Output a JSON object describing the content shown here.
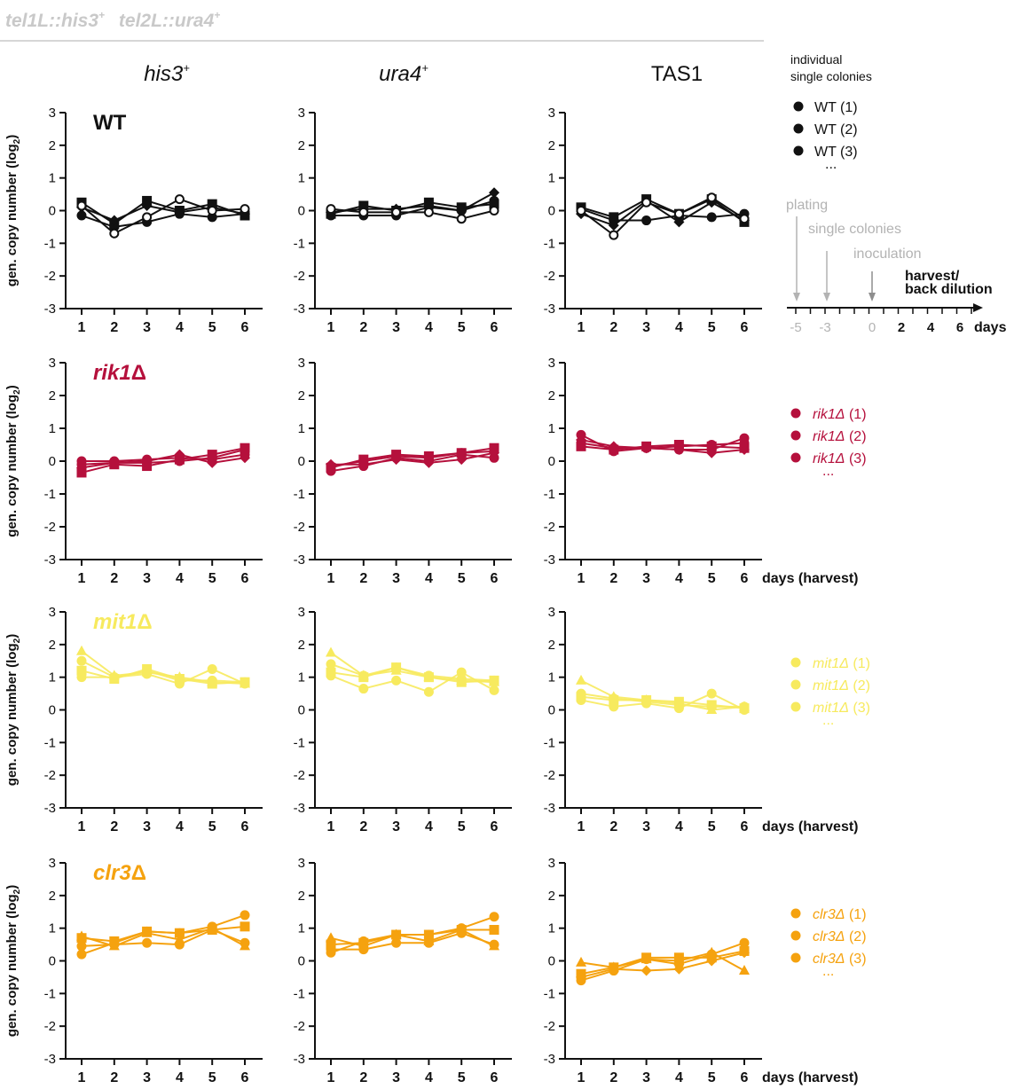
{
  "header": {
    "construct_a": "tel1L::his3",
    "construct_a_sup": "+",
    "construct_b": "tel2L::ura4",
    "construct_b_sup": "+"
  },
  "columns": [
    {
      "base": "his3",
      "sup": "+",
      "italic": true
    },
    {
      "base": "ura4",
      "sup": "+",
      "italic": true
    },
    {
      "base": "TAS1",
      "sup": "",
      "italic": false
    }
  ],
  "ylabel_main": "gen. copy number (log",
  "ylabel_sub": "2",
  "ylabel_close": ")",
  "xlabel": "days (harvest)",
  "legend": {
    "title_line1": "individual",
    "title_line2": "single colonies",
    "ellipsis": "..."
  },
  "timeline": {
    "labels": [
      "plating",
      "single colonies",
      "inoculation"
    ],
    "harvest_line1": "harvest/",
    "harvest_line2": "back dilution",
    "ticks": [
      "-5",
      "-3",
      "0",
      "2",
      "4",
      "6"
    ],
    "unit": "days"
  },
  "colors": {
    "WT": "#111111",
    "rik1": "#b5103c",
    "mit1": "#f7ea5e",
    "clr3": "#f5a20f",
    "grey": "#b3b3b3"
  },
  "chart_data": {
    "type": "line",
    "x": [
      1,
      2,
      3,
      4,
      5,
      6
    ],
    "ylim": [
      -3,
      3
    ],
    "yticks": [
      -3,
      -2,
      -1,
      0,
      1,
      2,
      3
    ],
    "grid": false,
    "rows": [
      {
        "strain": "WT",
        "mutant": false,
        "color": "#111111",
        "xlabel_shown": false,
        "legend": [
          "WT (1)",
          "WT (2)",
          "WT (3)"
        ],
        "panels": [
          {
            "column": "his3+",
            "series": [
              {
                "marker": "circle",
                "values": [
                  -0.15,
                  -0.5,
                  -0.35,
                  -0.1,
                  -0.2,
                  -0.1
                ]
              },
              {
                "marker": "square",
                "values": [
                  0.25,
                  -0.4,
                  0.3,
                  0.0,
                  0.2,
                  -0.15
                ]
              },
              {
                "marker": "diamond",
                "values": [
                  0.1,
                  -0.3,
                  0.15,
                  -0.05,
                  0.1,
                  -0.1
                ]
              },
              {
                "marker": "open",
                "values": [
                  0.15,
                  -0.7,
                  -0.2,
                  0.35,
                  0.0,
                  0.05
                ]
              }
            ]
          },
          {
            "column": "ura4+",
            "series": [
              {
                "marker": "circle",
                "values": [
                  -0.15,
                  -0.15,
                  -0.15,
                  0.1,
                  0.0,
                  0.3
                ]
              },
              {
                "marker": "square",
                "values": [
                  -0.1,
                  0.15,
                  0.0,
                  0.25,
                  0.1,
                  0.2
                ]
              },
              {
                "marker": "diamond",
                "values": [
                  -0.05,
                  0.05,
                  0.05,
                  0.15,
                  0.0,
                  0.55
                ]
              },
              {
                "marker": "open",
                "values": [
                  0.05,
                  -0.05,
                  -0.05,
                  -0.05,
                  -0.25,
                  0.0
                ]
              }
            ]
          },
          {
            "column": "TAS1",
            "series": [
              {
                "marker": "circle",
                "values": [
                  0.05,
                  -0.3,
                  -0.3,
                  -0.15,
                  -0.2,
                  -0.1
                ]
              },
              {
                "marker": "square",
                "values": [
                  0.1,
                  -0.2,
                  0.35,
                  -0.1,
                  0.35,
                  -0.35
                ]
              },
              {
                "marker": "diamond",
                "values": [
                  -0.1,
                  -0.45,
                  0.3,
                  -0.35,
                  0.25,
                  -0.3
                ]
              },
              {
                "marker": "open",
                "values": [
                  0.0,
                  -0.75,
                  0.25,
                  -0.1,
                  0.4,
                  -0.25
                ]
              }
            ]
          }
        ]
      },
      {
        "strain": "rik1",
        "mutant": true,
        "color": "#b5103c",
        "xlabel_shown": true,
        "legend": [
          "rik1Δ (1)",
          "rik1Δ (2)",
          "rik1Δ (3)"
        ],
        "panels": [
          {
            "column": "his3+",
            "series": [
              {
                "marker": "circle",
                "values": [
                  0.0,
                  0.0,
                  0.05,
                  0.1,
                  0.05,
                  0.2
                ]
              },
              {
                "marker": "square",
                "values": [
                  -0.35,
                  -0.1,
                  -0.15,
                  0.05,
                  0.2,
                  0.4
                ]
              },
              {
                "marker": "diamond",
                "values": [
                  -0.2,
                  -0.05,
                  0.0,
                  0.2,
                  -0.05,
                  0.1
                ]
              },
              {
                "marker": "circle",
                "values": [
                  -0.1,
                  -0.05,
                  -0.05,
                  0.0,
                  0.1,
                  0.35
                ]
              }
            ]
          },
          {
            "column": "ura4+",
            "series": [
              {
                "marker": "circle",
                "values": [
                  -0.3,
                  -0.15,
                  0.1,
                  0.0,
                  0.2,
                  0.1
                ]
              },
              {
                "marker": "square",
                "values": [
                  -0.2,
                  0.05,
                  0.2,
                  0.15,
                  0.25,
                  0.4
                ]
              },
              {
                "marker": "diamond",
                "values": [
                  -0.1,
                  -0.1,
                  0.05,
                  -0.05,
                  0.05,
                  0.25
                ]
              },
              {
                "marker": "circle",
                "values": [
                  -0.15,
                  0.0,
                  0.15,
                  0.1,
                  0.25,
                  0.3
                ]
              }
            ]
          },
          {
            "column": "TAS1",
            "series": [
              {
                "marker": "circle",
                "values": [
                  0.8,
                  0.3,
                  0.4,
                  0.35,
                  0.35,
                  0.7
                ]
              },
              {
                "marker": "square",
                "values": [
                  0.45,
                  0.35,
                  0.45,
                  0.5,
                  0.45,
                  0.4
                ]
              },
              {
                "marker": "diamond",
                "values": [
                  0.65,
                  0.45,
                  0.4,
                  0.35,
                  0.25,
                  0.35
                ]
              },
              {
                "marker": "circle",
                "values": [
                  0.55,
                  0.4,
                  0.4,
                  0.45,
                  0.5,
                  0.55
                ]
              }
            ]
          }
        ]
      },
      {
        "strain": "mit1",
        "mutant": true,
        "color": "#f7ea5e",
        "xlabel_shown": true,
        "legend": [
          "mit1Δ (1)",
          "mit1Δ (2)",
          "mit1Δ (3)"
        ],
        "panels": [
          {
            "column": "his3+",
            "series": [
              {
                "marker": "circle",
                "values": [
                  1.0,
                  1.0,
                  1.1,
                  0.8,
                  1.25,
                  0.8
                ]
              },
              {
                "marker": "square",
                "values": [
                  1.2,
                  0.95,
                  1.25,
                  0.95,
                  0.8,
                  0.85
                ]
              },
              {
                "marker": "triangle",
                "values": [
                  1.8,
                  1.05,
                  1.15,
                  1.0,
                  0.85,
                  0.8
                ]
              },
              {
                "marker": "circle",
                "values": [
                  1.5,
                  1.0,
                  1.2,
                  0.9,
                  0.9,
                  0.85
                ]
              }
            ]
          },
          {
            "column": "ura4+",
            "series": [
              {
                "marker": "circle",
                "values": [
                  1.05,
                  0.65,
                  0.9,
                  0.55,
                  1.15,
                  0.6
                ]
              },
              {
                "marker": "square",
                "values": [
                  1.15,
                  1.0,
                  1.3,
                  1.0,
                  0.85,
                  0.9
                ]
              },
              {
                "marker": "triangle",
                "values": [
                  1.75,
                  1.05,
                  1.2,
                  1.0,
                  0.9,
                  0.85
                ]
              },
              {
                "marker": "circle",
                "values": [
                  1.4,
                  1.05,
                  1.3,
                  1.05,
                  0.95,
                  0.9
                ]
              }
            ]
          },
          {
            "column": "TAS1",
            "series": [
              {
                "marker": "circle",
                "values": [
                  0.3,
                  0.1,
                  0.2,
                  0.05,
                  0.5,
                  0.0
                ]
              },
              {
                "marker": "square",
                "values": [
                  0.4,
                  0.3,
                  0.3,
                  0.25,
                  0.15,
                  0.05
                ]
              },
              {
                "marker": "triangle",
                "values": [
                  0.9,
                  0.4,
                  0.3,
                  0.2,
                  0.0,
                  0.1
                ]
              },
              {
                "marker": "circle",
                "values": [
                  0.5,
                  0.35,
                  0.25,
                  0.15,
                  0.1,
                  0.1
                ]
              }
            ]
          }
        ]
      },
      {
        "strain": "clr3",
        "mutant": true,
        "color": "#f5a20f",
        "xlabel_shown": true,
        "legend": [
          "clr3Δ (1)",
          "clr3Δ (2)",
          "clr3Δ (3)"
        ],
        "panels": [
          {
            "column": "his3+",
            "series": [
              {
                "marker": "circle",
                "values": [
                  0.2,
                  0.55,
                  0.9,
                  0.85,
                  1.05,
                  1.4
                ]
              },
              {
                "marker": "square",
                "values": [
                  0.7,
                  0.6,
                  0.9,
                  0.85,
                  0.95,
                  1.05
                ]
              },
              {
                "marker": "triangle",
                "values": [
                  0.75,
                  0.45,
                  0.85,
                  0.65,
                  1.0,
                  0.45
                ]
              },
              {
                "marker": "circle",
                "values": [
                  0.45,
                  0.5,
                  0.55,
                  0.5,
                  0.95,
                  0.55
                ]
              }
            ]
          },
          {
            "column": "ura4+",
            "series": [
              {
                "marker": "circle",
                "values": [
                  0.25,
                  0.6,
                  0.8,
                  0.8,
                  1.0,
                  1.35
                ]
              },
              {
                "marker": "square",
                "values": [
                  0.5,
                  0.55,
                  0.8,
                  0.8,
                  0.95,
                  0.95
                ]
              },
              {
                "marker": "triangle",
                "values": [
                  0.7,
                  0.45,
                  0.8,
                  0.6,
                  0.95,
                  0.45
                ]
              },
              {
                "marker": "circle",
                "values": [
                  0.35,
                  0.35,
                  0.55,
                  0.55,
                  0.85,
                  0.5
                ]
              }
            ]
          },
          {
            "column": "TAS1",
            "series": [
              {
                "marker": "circle",
                "values": [
                  -0.6,
                  -0.3,
                  0.05,
                  -0.1,
                  0.2,
                  0.55
                ]
              },
              {
                "marker": "square",
                "values": [
                  -0.4,
                  -0.2,
                  0.1,
                  0.1,
                  0.1,
                  0.3
                ]
              },
              {
                "marker": "triangle",
                "values": [
                  -0.05,
                  -0.2,
                  0.05,
                  0.0,
                  0.25,
                  -0.3
                ]
              },
              {
                "marker": "diamond",
                "values": [
                  -0.5,
                  -0.25,
                  -0.3,
                  -0.25,
                  0.0,
                  0.25
                ]
              }
            ]
          }
        ]
      }
    ]
  }
}
